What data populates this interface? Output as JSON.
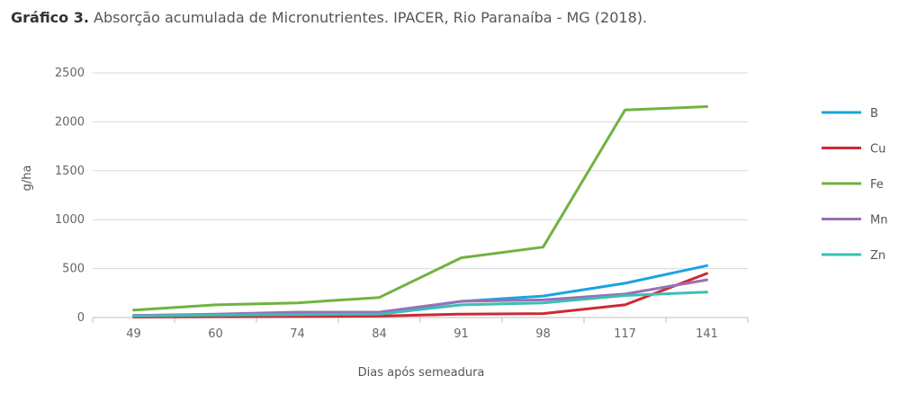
{
  "header": {
    "title_bold": "Gráfico 3.",
    "title_rest": "Absorção acumulada de Micronutrientes. IPACER, Rio Paranaíba - MG (2018)."
  },
  "chart_data": {
    "type": "line",
    "xlabel": "Dias após semeadura",
    "ylabel": "g/ha",
    "ylim": [
      0,
      2500
    ],
    "yticks": [
      "0",
      "500",
      "1000",
      "1500",
      "2000",
      "2500"
    ],
    "categories": [
      "49",
      "60",
      "74",
      "84",
      "91",
      "98",
      "117",
      "141"
    ],
    "grid": "horizontal",
    "legend_position": "right",
    "series": [
      {
        "name": "B",
        "color": "#1ba3e0",
        "values": [
          20,
          30,
          40,
          40,
          165,
          220,
          350,
          530
        ]
      },
      {
        "name": "Cu",
        "color": "#cc2a35",
        "values": [
          5,
          8,
          10,
          15,
          35,
          40,
          130,
          450
        ]
      },
      {
        "name": "Fe",
        "color": "#6fb33f",
        "values": [
          75,
          130,
          150,
          205,
          610,
          720,
          2120,
          2155
        ]
      },
      {
        "name": "Mn",
        "color": "#9b6fb5",
        "values": [
          20,
          35,
          55,
          55,
          165,
          180,
          240,
          385
        ]
      },
      {
        "name": "Zn",
        "color": "#3bbfb5",
        "values": [
          15,
          25,
          30,
          35,
          130,
          150,
          225,
          260
        ]
      }
    ]
  }
}
